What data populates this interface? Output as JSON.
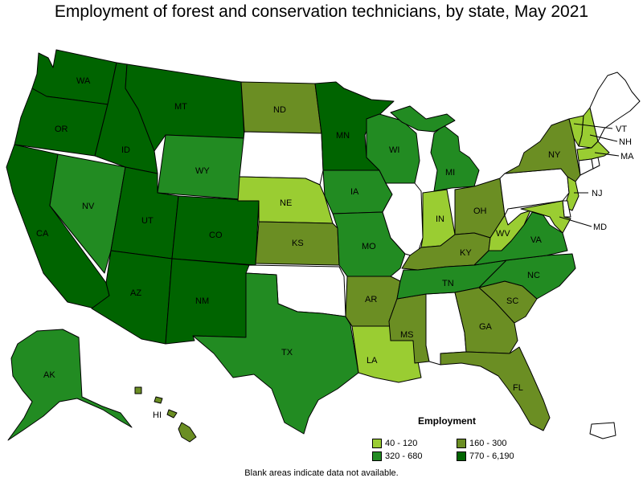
{
  "title": "Employment of forest and conservation technicians, by state, May 2021",
  "note": "Blank areas indicate data not available.",
  "legend": {
    "title": "Employment",
    "items": [
      {
        "label": "40 - 120",
        "color": "#9acd32"
      },
      {
        "label": "160 - 300",
        "color": "#6b8e23"
      },
      {
        "label": "320 - 680",
        "color": "#228b22"
      },
      {
        "label": "770 - 6,190",
        "color": "#006400"
      }
    ]
  },
  "colors": {
    "bin1": "#9acd32",
    "bin2": "#6b8e23",
    "bin3": "#228b22",
    "bin4": "#006400",
    "no_data": "#ffffff"
  },
  "states": {
    "WA": {
      "label": "WA",
      "bin": 4
    },
    "OR": {
      "label": "OR",
      "bin": 4
    },
    "CA": {
      "label": "CA",
      "bin": 4
    },
    "ID": {
      "label": "ID",
      "bin": 4
    },
    "MT": {
      "label": "MT",
      "bin": 4
    },
    "UT": {
      "label": "UT",
      "bin": 4
    },
    "AZ": {
      "label": "AZ",
      "bin": 4
    },
    "CO": {
      "label": "CO",
      "bin": 4
    },
    "NM": {
      "label": "NM",
      "bin": 4
    },
    "MN": {
      "label": "MN",
      "bin": 4
    },
    "NV": {
      "label": "NV",
      "bin": 3
    },
    "WY": {
      "label": "WY",
      "bin": 3
    },
    "TX": {
      "label": "TX",
      "bin": 3
    },
    "IA": {
      "label": "IA",
      "bin": 3
    },
    "MO": {
      "label": "MO",
      "bin": 3
    },
    "WI": {
      "label": "WI",
      "bin": 3
    },
    "MI": {
      "label": "MI",
      "bin": 3
    },
    "TN": {
      "label": "TN",
      "bin": 3
    },
    "NC": {
      "label": "NC",
      "bin": 3
    },
    "VA": {
      "label": "VA",
      "bin": 3
    },
    "AK": {
      "label": "AK",
      "bin": 3
    },
    "ND": {
      "label": "ND",
      "bin": 2
    },
    "KS": {
      "label": "KS",
      "bin": 2
    },
    "AR": {
      "label": "AR",
      "bin": 2
    },
    "MS": {
      "label": "MS",
      "bin": 2
    },
    "OH": {
      "label": "OH",
      "bin": 2
    },
    "KY": {
      "label": "KY",
      "bin": 2
    },
    "GA": {
      "label": "GA",
      "bin": 2
    },
    "SC": {
      "label": "SC",
      "bin": 2
    },
    "FL": {
      "label": "FL",
      "bin": 2
    },
    "NY": {
      "label": "NY",
      "bin": 2
    },
    "HI": {
      "label": "HI",
      "bin": 2
    },
    "NE": {
      "label": "NE",
      "bin": 1
    },
    "IN": {
      "label": "IN",
      "bin": 1
    },
    "LA": {
      "label": "LA",
      "bin": 1
    },
    "WV": {
      "label": "WV",
      "bin": 1
    },
    "NJ": {
      "label": "NJ",
      "bin": 1
    },
    "MD": {
      "label": "MD",
      "bin": 1
    },
    "VT": {
      "label": "VT",
      "bin": 1
    },
    "NH": {
      "label": "NH",
      "bin": 1
    },
    "MA": {
      "label": "MA",
      "bin": 1
    },
    "SD": {
      "label": "",
      "bin": 0
    },
    "OK": {
      "label": "",
      "bin": 0
    },
    "IL": {
      "label": "",
      "bin": 0
    },
    "AL": {
      "label": "",
      "bin": 0
    },
    "PA": {
      "label": "",
      "bin": 0
    },
    "ME": {
      "label": "",
      "bin": 0
    },
    "CT": {
      "label": "",
      "bin": 0
    },
    "RI": {
      "label": "",
      "bin": 0
    },
    "DE": {
      "label": "",
      "bin": 0
    },
    "PR": {
      "label": "",
      "bin": 0
    }
  }
}
